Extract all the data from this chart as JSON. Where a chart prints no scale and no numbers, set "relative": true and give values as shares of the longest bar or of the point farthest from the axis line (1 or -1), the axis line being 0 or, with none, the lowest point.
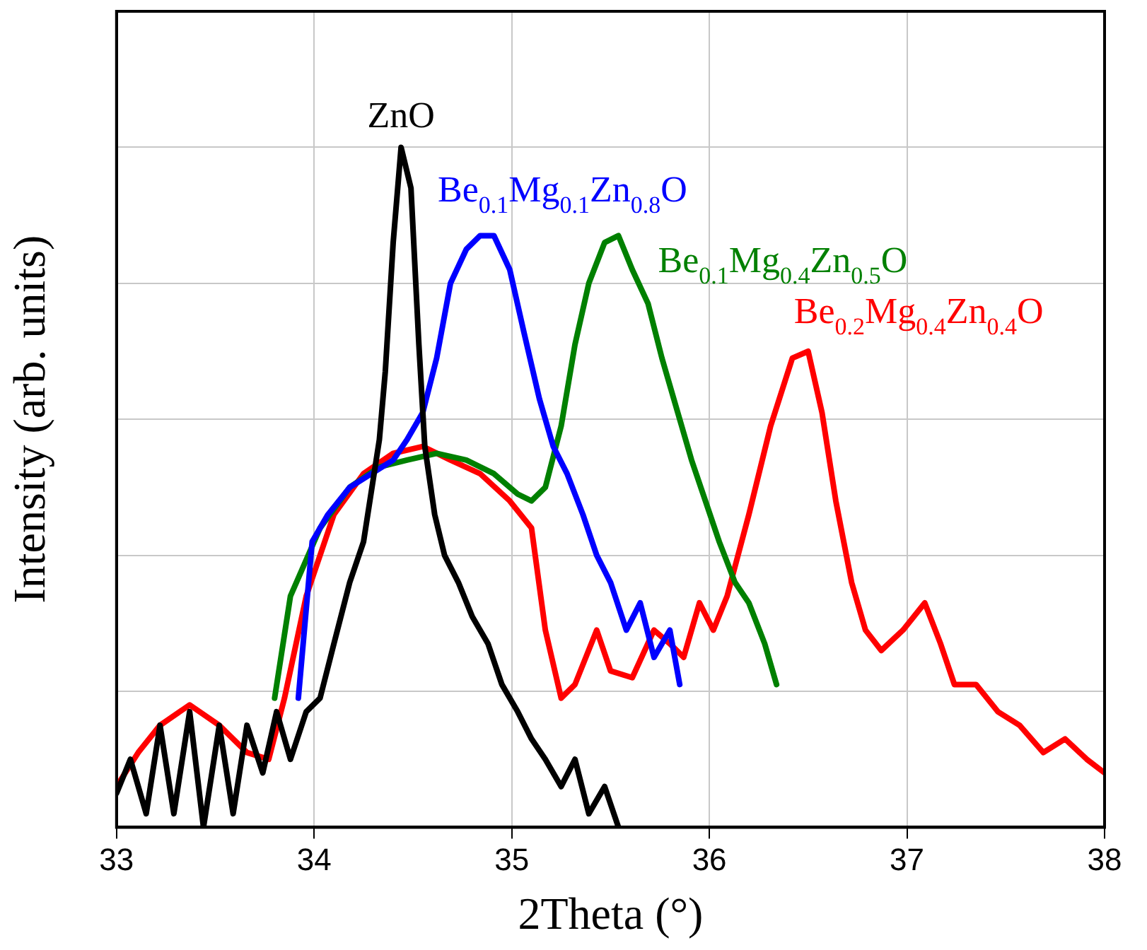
{
  "chart_data": {
    "type": "line",
    "xlabel": "2Theta (°)",
    "ylabel": "Intensity (arb. units)",
    "relative": true,
    "xlim": [
      33,
      38
    ],
    "xticks": [
      33,
      34,
      35,
      36,
      37,
      38
    ],
    "grid": true,
    "legend": false,
    "marker": "none",
    "line_style": "solid",
    "series": [
      {
        "name": "ZnO",
        "color": "#000000",
        "x": [
          33.0,
          33.07,
          33.15,
          33.22,
          33.29,
          33.37,
          33.44,
          33.52,
          33.59,
          33.66,
          33.74,
          33.81,
          33.88,
          33.96,
          34.03,
          34.1,
          34.18,
          34.25,
          34.33,
          34.36,
          34.4,
          34.44,
          34.49,
          34.53,
          34.56,
          34.61,
          34.66,
          34.73,
          34.8,
          34.88,
          34.95,
          35.03,
          35.1,
          35.17,
          35.25,
          35.32,
          35.39,
          35.47,
          35.54
        ],
        "values": [
          0.05,
          0.1,
          0.02,
          0.15,
          0.02,
          0.17,
          0,
          0.15,
          0.02,
          0.15,
          0.08,
          0.17,
          0.1,
          0.17,
          0.19,
          0.27,
          0.36,
          0.42,
          0.57,
          0.67,
          0.86,
          1,
          0.94,
          0.71,
          0.56,
          0.46,
          0.4,
          0.36,
          0.31,
          0.27,
          0.21,
          0.17,
          0.13,
          0.1,
          0.06,
          0.1,
          0.02,
          0.06,
          0
        ]
      },
      {
        "name": "Be$_{0.1}$Mg$_{0.1}$Zn$_{0.8}$O",
        "color": "#0000ff",
        "x": [
          33.92,
          33.99,
          34.07,
          34.18,
          34.29,
          34.4,
          34.47,
          34.55,
          34.62,
          34.69,
          34.77,
          34.84,
          34.91,
          34.99,
          35.06,
          35.14,
          35.21,
          35.28,
          35.36,
          35.43,
          35.5,
          35.58,
          35.65,
          35.72,
          35.8,
          35.85
        ],
        "values": [
          0.19,
          0.42,
          0.46,
          0.5,
          0.52,
          0.54,
          0.57,
          0.61,
          0.69,
          0.8,
          0.85,
          0.87,
          0.87,
          0.82,
          0.73,
          0.63,
          0.56,
          0.52,
          0.46,
          0.4,
          0.36,
          0.29,
          0.33,
          0.25,
          0.29,
          0.21
        ]
      },
      {
        "name": "Be$_{0.1}$Mg$_{0.4}$Zn$_{0.5}$O",
        "color": "#008000",
        "x": [
          33.8,
          33.88,
          34.03,
          34.18,
          34.33,
          34.47,
          34.62,
          34.77,
          34.91,
          35.03,
          35.1,
          35.17,
          35.25,
          35.32,
          35.39,
          35.47,
          35.54,
          35.61,
          35.69,
          35.76,
          35.84,
          35.91,
          35.98,
          36.05,
          36.13,
          36.2,
          36.28,
          36.34
        ],
        "values": [
          0.19,
          0.34,
          0.44,
          0.5,
          0.53,
          0.54,
          0.55,
          0.54,
          0.52,
          0.49,
          0.48,
          0.5,
          0.59,
          0.71,
          0.8,
          0.86,
          0.87,
          0.82,
          0.77,
          0.69,
          0.61,
          0.54,
          0.48,
          0.42,
          0.36,
          0.33,
          0.27,
          0.21
        ]
      },
      {
        "name": "Be$_{0.2}$Mg$_{0.4}$Zn$_{0.4}$O",
        "color": "#ff0000",
        "x": [
          33.0,
          33.11,
          33.22,
          33.37,
          33.52,
          33.66,
          33.77,
          33.85,
          33.96,
          34.1,
          34.25,
          34.4,
          34.55,
          34.69,
          34.84,
          34.99,
          35.1,
          35.17,
          35.25,
          35.32,
          35.43,
          35.5,
          35.61,
          35.72,
          35.8,
          35.87,
          35.95,
          36.02,
          36.09,
          36.2,
          36.31,
          36.42,
          36.5,
          36.57,
          36.64,
          36.72,
          36.79,
          36.87,
          36.98,
          37.09,
          37.17,
          37.24,
          37.35,
          37.46,
          37.57,
          37.69,
          37.8,
          37.91,
          38.0
        ],
        "values": [
          0.06,
          0.11,
          0.15,
          0.18,
          0.15,
          0.11,
          0.1,
          0.19,
          0.34,
          0.46,
          0.52,
          0.55,
          0.56,
          0.54,
          0.52,
          0.48,
          0.44,
          0.29,
          0.19,
          0.21,
          0.29,
          0.23,
          0.22,
          0.29,
          0.27,
          0.25,
          0.33,
          0.29,
          0.34,
          0.46,
          0.59,
          0.69,
          0.7,
          0.61,
          0.48,
          0.36,
          0.29,
          0.26,
          0.29,
          0.33,
          0.27,
          0.21,
          0.21,
          0.17,
          0.15,
          0.11,
          0.13,
          0.1,
          0.08
        ]
      }
    ]
  }
}
